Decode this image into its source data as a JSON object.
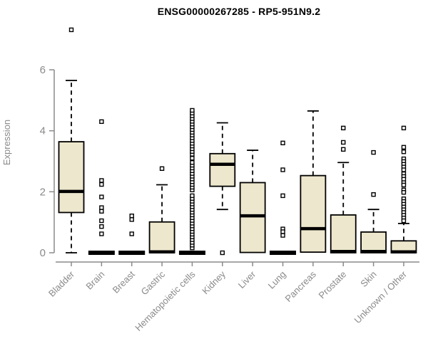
{
  "chart_data": {
    "type": "boxplot",
    "title": "ENSG00000267285 - RP5-951N9.2",
    "ylabel": "Expression",
    "xlabel": "",
    "ylim": [
      0,
      6
    ],
    "yticks": [
      0,
      2,
      4,
      6
    ],
    "grid": false,
    "legend": null,
    "colors": {
      "box_fill": "#EDE7CD",
      "box_stroke": "#000000",
      "median": "#000000",
      "outlier_stroke": "#000000",
      "outlier_fill": "#FFFFFF",
      "axis": "#8A8A8A",
      "title": "#000000",
      "background": "#FFFFFF"
    },
    "categories": [
      "Bladder",
      "Brain",
      "Breast",
      "Gastric",
      "Hematopoietic cells",
      "Kidney",
      "Liver",
      "Lung",
      "Pancreas",
      "Prostate",
      "Skin",
      "Unknown / Other"
    ],
    "boxes": [
      {
        "name": "Bladder",
        "whisker_low": 0,
        "q1": 1.32,
        "median": 2.01,
        "q3": 3.64,
        "whisker_high": 5.65,
        "outliers": [
          7.31
        ]
      },
      {
        "name": "Brain",
        "whisker_low": 0,
        "q1": 0,
        "median": 0,
        "q3": 0,
        "whisker_high": 0,
        "outliers": [
          4.3,
          2.37,
          2.24,
          1.83,
          1.48,
          1.36,
          1.05,
          0.86,
          0.62
        ]
      },
      {
        "name": "Breast",
        "whisker_low": 0,
        "q1": 0,
        "median": 0,
        "q3": 0,
        "whisker_high": 0,
        "outliers": [
          1.21,
          1.09,
          0.62
        ]
      },
      {
        "name": "Gastric",
        "whisker_low": 0,
        "q1": 0,
        "median": 0.03,
        "q3": 1.01,
        "whisker_high": 2.23,
        "outliers": [
          2.76
        ]
      },
      {
        "name": "Hematopoietic cells",
        "whisker_low": 0,
        "q1": 0,
        "median": 0,
        "q3": 0,
        "whisker_high": 0,
        "outliers": [
          0.16,
          0.25,
          0.34,
          0.43,
          0.52,
          0.61,
          0.7,
          0.79,
          0.88,
          0.97,
          1.06,
          1.15,
          1.24,
          1.33,
          1.42,
          1.51,
          1.6,
          1.69,
          1.78,
          1.87,
          2.06,
          2.15,
          2.24,
          2.33,
          2.42,
          2.51,
          2.6,
          2.69,
          2.78,
          2.87,
          2.96,
          3.1,
          3.23,
          3.32,
          3.41,
          3.5,
          3.59,
          3.68,
          3.77,
          3.86,
          3.95,
          4.04,
          4.13,
          4.22,
          4.31,
          4.4,
          4.49,
          4.58,
          4.67
        ]
      },
      {
        "name": "Kidney",
        "whisker_low": 1.42,
        "q1": 2.18,
        "median": 2.9,
        "q3": 3.25,
        "whisker_high": 4.26,
        "outliers": [
          0
        ]
      },
      {
        "name": "Liver",
        "whisker_low": 0,
        "q1": 0.01,
        "median": 1.21,
        "q3": 2.3,
        "whisker_high": 3.36,
        "outliers": []
      },
      {
        "name": "Lung",
        "whisker_low": 0,
        "q1": 0,
        "median": 0,
        "q3": 0,
        "whisker_high": 0,
        "outliers": [
          3.6,
          2.72,
          1.87,
          0.78,
          0.69,
          0.57
        ]
      },
      {
        "name": "Pancreas",
        "whisker_low": 0,
        "q1": 0.02,
        "median": 0.79,
        "q3": 2.53,
        "whisker_high": 4.65,
        "outliers": []
      },
      {
        "name": "Prostate",
        "whisker_low": 0,
        "q1": 0,
        "median": 0.04,
        "q3": 1.24,
        "whisker_high": 2.96,
        "outliers": [
          4.09,
          3.62,
          3.39
        ]
      },
      {
        "name": "Skin",
        "whisker_low": 0,
        "q1": 0,
        "median": 0.04,
        "q3": 0.68,
        "whisker_high": 1.42,
        "outliers": [
          3.29,
          1.91
        ]
      },
      {
        "name": "Unknown / Other",
        "whisker_low": 0,
        "q1": 0,
        "median": 0.03,
        "q3": 0.39,
        "whisker_high": 0.96,
        "outliers": [
          4.09,
          3.46,
          3.31,
          3.08,
          2.99,
          2.9,
          2.81,
          2.72,
          2.59,
          2.5,
          2.41,
          2.3,
          2.22,
          2.06,
          1.98,
          1.77,
          1.68,
          1.59,
          1.5,
          1.41,
          1.32,
          1.23,
          1.14,
          1.05
        ]
      }
    ]
  }
}
